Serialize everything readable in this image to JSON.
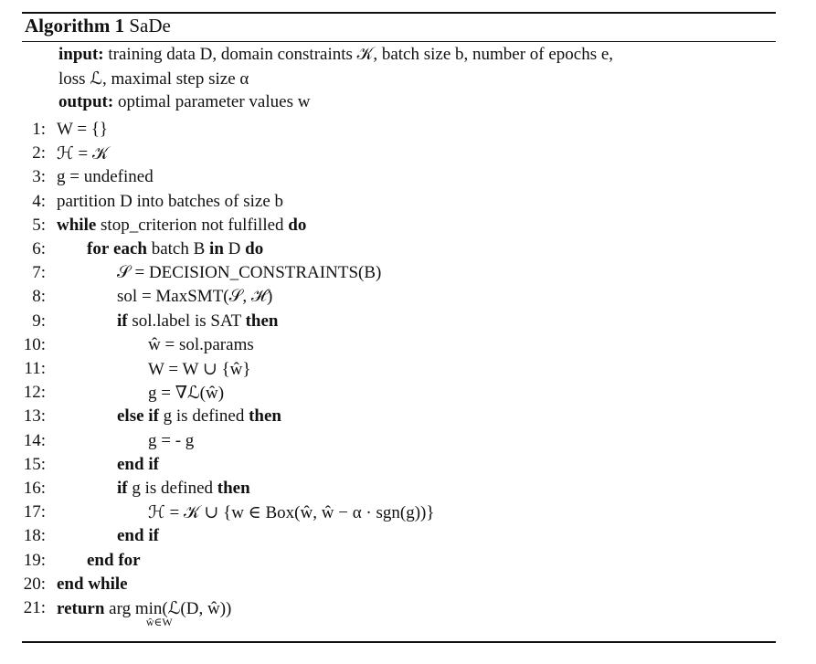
{
  "algorithm": {
    "number_label": "Algorithm 1",
    "name": "SaDe",
    "input_keyword": "input:",
    "input_line1": "training data D, domain constraints 𝒦, batch size b, number of epochs e,",
    "input_line2": "loss ℒ, maximal step size α",
    "output_keyword": "output:",
    "output_text": "optimal parameter values w"
  },
  "lines": [
    {
      "n": "1:",
      "text": "W = {}"
    },
    {
      "n": "2:",
      "text": "ℋ = 𝒦"
    },
    {
      "n": "3:",
      "text": "g = undefined"
    },
    {
      "n": "4:",
      "text": "partition D into batches of size b"
    },
    {
      "n": "5:",
      "text": "while stop_criterion not fulfilled do"
    },
    {
      "n": "6:",
      "text": "for each batch B in D do"
    },
    {
      "n": "7:",
      "text": "𝒮 = DECISION_CONSTRAINTS(B)"
    },
    {
      "n": "8:",
      "text": "sol = MaxSMT(𝒮, ℋ)"
    },
    {
      "n": "9:",
      "text": "if sol.label is SAT then"
    },
    {
      "n": "10:",
      "text": "ŵ = sol.params"
    },
    {
      "n": "11:",
      "text": "W = W ∪ {ŵ}"
    },
    {
      "n": "12:",
      "text": "g = ∇ℒ(ŵ)"
    },
    {
      "n": "13:",
      "text": "else if g is defined then"
    },
    {
      "n": "14:",
      "text": "g = - g"
    },
    {
      "n": "15:",
      "text": "end if"
    },
    {
      "n": "16:",
      "text": "if g is defined then"
    },
    {
      "n": "17:",
      "text": "ℋ = 𝒦 ∪ {w ∈ Box(ŵ, ŵ − α · sgn(g))}"
    },
    {
      "n": "18:",
      "text": "end if"
    },
    {
      "n": "19:",
      "text": "end for"
    },
    {
      "n": "20:",
      "text": "end while"
    },
    {
      "n": "21:",
      "text": "return arg min(ℒ(D, ŵ))"
    }
  ],
  "argmin_subscript": "ŵ∈W"
}
